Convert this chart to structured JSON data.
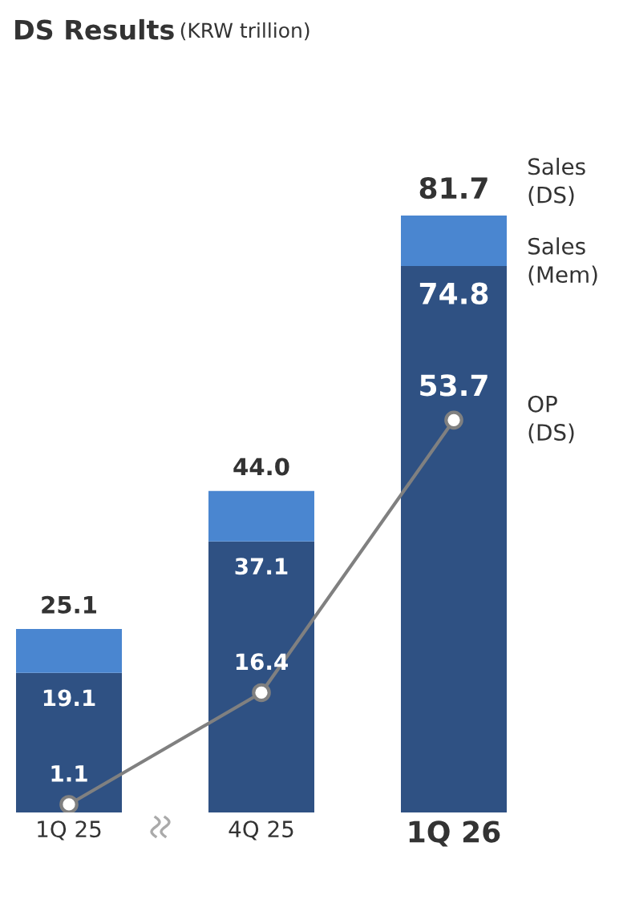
{
  "chart_data": {
    "type": "bar",
    "title": "DS Results",
    "subtitle": "(KRW trillion)",
    "categories": [
      "1Q 25",
      "4Q 25",
      "1Q 26"
    ],
    "stacked": true,
    "tick_labels": "x",
    "grid": false,
    "legend": false,
    "series": [
      {
        "name": "Sales (Mem)",
        "color": "#2f5183",
        "values": [
          19.1,
          37.1,
          74.8
        ],
        "value_labels": [
          "19.1",
          "37.1",
          "74.8"
        ]
      },
      {
        "name": "Sales (DS)",
        "color": "#4a86d0",
        "values": [
          6.0,
          6.9,
          6.9
        ]
      },
      {
        "name": "OP (DS)",
        "type": "line",
        "color": "#808080",
        "marker": "circle",
        "values": [
          1.1,
          16.4,
          53.7
        ],
        "value_labels": [
          "1.1",
          "16.4",
          "53.7"
        ]
      }
    ],
    "totals": [
      "25.1",
      "44.0",
      "81.7"
    ]
  }
}
